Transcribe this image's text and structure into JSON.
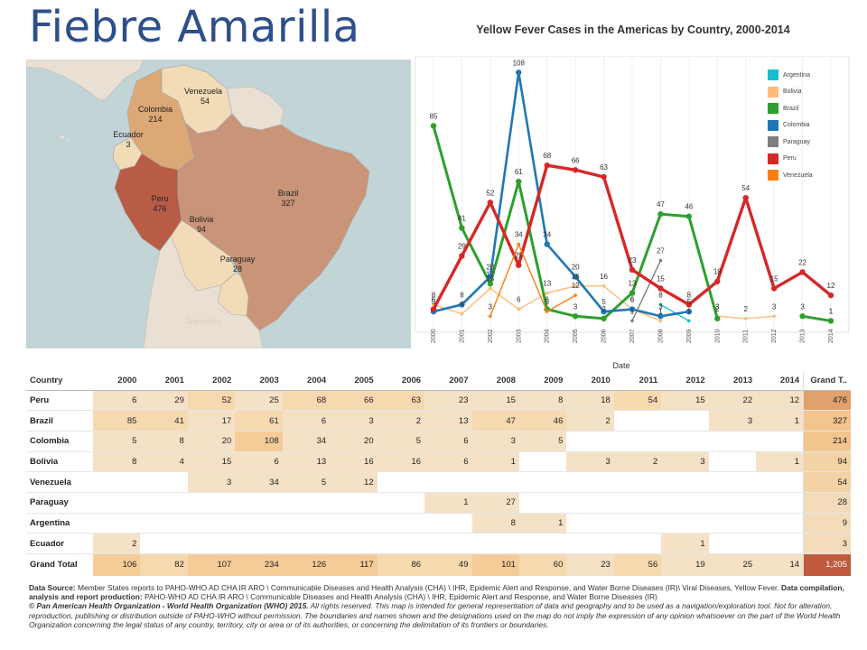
{
  "page_title": "Fiebre Amarilla",
  "map": {
    "labels": [
      {
        "name": "Venezuela",
        "value": "54"
      },
      {
        "name": "Colombia",
        "value": "214"
      },
      {
        "name": "Ecuador",
        "value": "3"
      },
      {
        "name": "Peru",
        "value": "476"
      },
      {
        "name": "Brazil",
        "value": "327"
      },
      {
        "name": "Bolivia",
        "value": "94"
      },
      {
        "name": "Paraguay",
        "value": "28"
      },
      {
        "name": "Argentina",
        "value": ""
      }
    ],
    "colors": {
      "water": "#c3d4d6",
      "land": "#e9dfd2",
      "low": "#f2dcb8",
      "mid": "#dca875",
      "high": "#b85c45",
      "brazil": "#c99478"
    }
  },
  "chart_data": {
    "type": "line",
    "title": "Yellow Fever Cases in the Americas by Country, 2000-2014",
    "xlabel": "Date",
    "ylabel": "",
    "x": [
      "2000",
      "2001",
      "2002",
      "2003",
      "2004",
      "2005",
      "2006",
      "2007",
      "2008",
      "2009",
      "2010",
      "2011",
      "2012",
      "2013",
      "2014"
    ],
    "ylim": [
      0,
      112
    ],
    "legend_position": "top-right",
    "series": [
      {
        "name": "Argentina",
        "color": "#17becf",
        "values": [
          null,
          null,
          null,
          null,
          null,
          null,
          null,
          null,
          8,
          1,
          null,
          null,
          null,
          null,
          null
        ]
      },
      {
        "name": "Bolivia",
        "color": "#ffbb78",
        "values": [
          8,
          4,
          15,
          6,
          13,
          16,
          16,
          6,
          1,
          null,
          3,
          2,
          3,
          null,
          1
        ]
      },
      {
        "name": "Brazil",
        "color": "#2ca02c",
        "values": [
          85,
          41,
          17,
          61,
          6,
          3,
          2,
          13,
          47,
          46,
          2,
          null,
          null,
          3,
          1
        ]
      },
      {
        "name": "Colombia",
        "color": "#1f77b4",
        "values": [
          5,
          8,
          20,
          108,
          34,
          20,
          5,
          6,
          3,
          5,
          null,
          null,
          null,
          null,
          null
        ]
      },
      {
        "name": "Paraguay",
        "color": "#7f7f7f",
        "values": [
          null,
          null,
          null,
          null,
          null,
          null,
          null,
          1,
          27,
          null,
          null,
          null,
          null,
          null,
          null
        ]
      },
      {
        "name": "Peru",
        "color": "#d62728",
        "values": [
          6,
          29,
          52,
          25,
          68,
          66,
          63,
          23,
          15,
          8,
          18,
          54,
          15,
          22,
          12
        ]
      },
      {
        "name": "Venezuela",
        "color": "#ff7f0e",
        "values": [
          null,
          null,
          3,
          34,
          5,
          12,
          null,
          null,
          null,
          null,
          null,
          null,
          null,
          null,
          null
        ]
      }
    ]
  },
  "table": {
    "header_country": "Country",
    "header_total": "Grand T..",
    "years": [
      "2000",
      "2001",
      "2002",
      "2003",
      "2004",
      "2005",
      "2006",
      "2007",
      "2008",
      "2009",
      "2010",
      "2011",
      "2012",
      "2013",
      "2014"
    ],
    "rows": [
      {
        "country": "Peru",
        "values": [
          "6",
          "29",
          "52",
          "25",
          "68",
          "66",
          "63",
          "23",
          "15",
          "8",
          "18",
          "54",
          "15",
          "22",
          "12"
        ],
        "total": "476"
      },
      {
        "country": "Brazil",
        "values": [
          "85",
          "41",
          "17",
          "61",
          "6",
          "3",
          "2",
          "13",
          "47",
          "46",
          "2",
          "",
          "",
          "3",
          "1"
        ],
        "total": "327"
      },
      {
        "country": "Colombia",
        "values": [
          "5",
          "8",
          "20",
          "108",
          "34",
          "20",
          "5",
          "6",
          "3",
          "5",
          "",
          "",
          "",
          "",
          ""
        ],
        "total": "214"
      },
      {
        "country": "Bolivia",
        "values": [
          "8",
          "4",
          "15",
          "6",
          "13",
          "16",
          "16",
          "6",
          "1",
          "",
          "3",
          "2",
          "3",
          "",
          "1"
        ],
        "total": "94"
      },
      {
        "country": "Venezuela",
        "values": [
          "",
          "",
          "3",
          "34",
          "5",
          "12",
          "",
          "",
          "",
          "",
          "",
          "",
          "",
          "",
          ""
        ],
        "total": "54"
      },
      {
        "country": "Paraguay",
        "values": [
          "",
          "",
          "",
          "",
          "",
          "",
          "",
          "1",
          "27",
          "",
          "",
          "",
          "",
          "",
          ""
        ],
        "total": "28"
      },
      {
        "country": "Argentina",
        "values": [
          "",
          "",
          "",
          "",
          "",
          "",
          "",
          "",
          "8",
          "1",
          "",
          "",
          "",
          "",
          ""
        ],
        "total": "9"
      },
      {
        "country": "Ecuador",
        "values": [
          "2",
          "",
          "",
          "",
          "",
          "",
          "",
          "",
          "",
          "",
          "",
          "",
          "1",
          "",
          ""
        ],
        "total": "3"
      }
    ],
    "grand": {
      "country": "Grand Total",
      "values": [
        "106",
        "82",
        "107",
        "234",
        "126",
        "117",
        "86",
        "49",
        "101",
        "60",
        "23",
        "56",
        "19",
        "25",
        "14"
      ],
      "total": "1,205"
    }
  },
  "footer": {
    "source_label": "Data Source:",
    "source_text": " Member States reports to PAHO-WHO AD CHA IR ARO \\ Communicable Diseases and Health Analysis (CHA) \\ IHR, Epidemic Alert and Response, and Water Borne Diseases (IR)\\ Viral Diseases, Yellow Fever. ",
    "compilation_label": "Data compilation, analysis and report production:",
    "compilation_text": " PAHO-WHO AD CHA IR ARO \\ Communicable Diseases and Health Analysis (CHA) \\ IHR, Epidemic Alert and Response, and Water Borne Diseases (IR)",
    "copyright_label": "© Pan American Health Organization - World Health Organization (WHO) 2015.",
    "copyright_text": " All rights reserved. This map is intended for general representation of data and geography and to be used as a navigation/exploration tool. Not for alteration, reproduction, publishing or distribution outside of PAHO-WHO without permission. The boundaries and names shown and the designations used on the map do not imply the expression of any opinion whatsoever on the part of the World Health Organization concerning the legal status of any country, territory, city or area or of its authorities, or concerning the delimitation of its frontiers or boundaries."
  }
}
